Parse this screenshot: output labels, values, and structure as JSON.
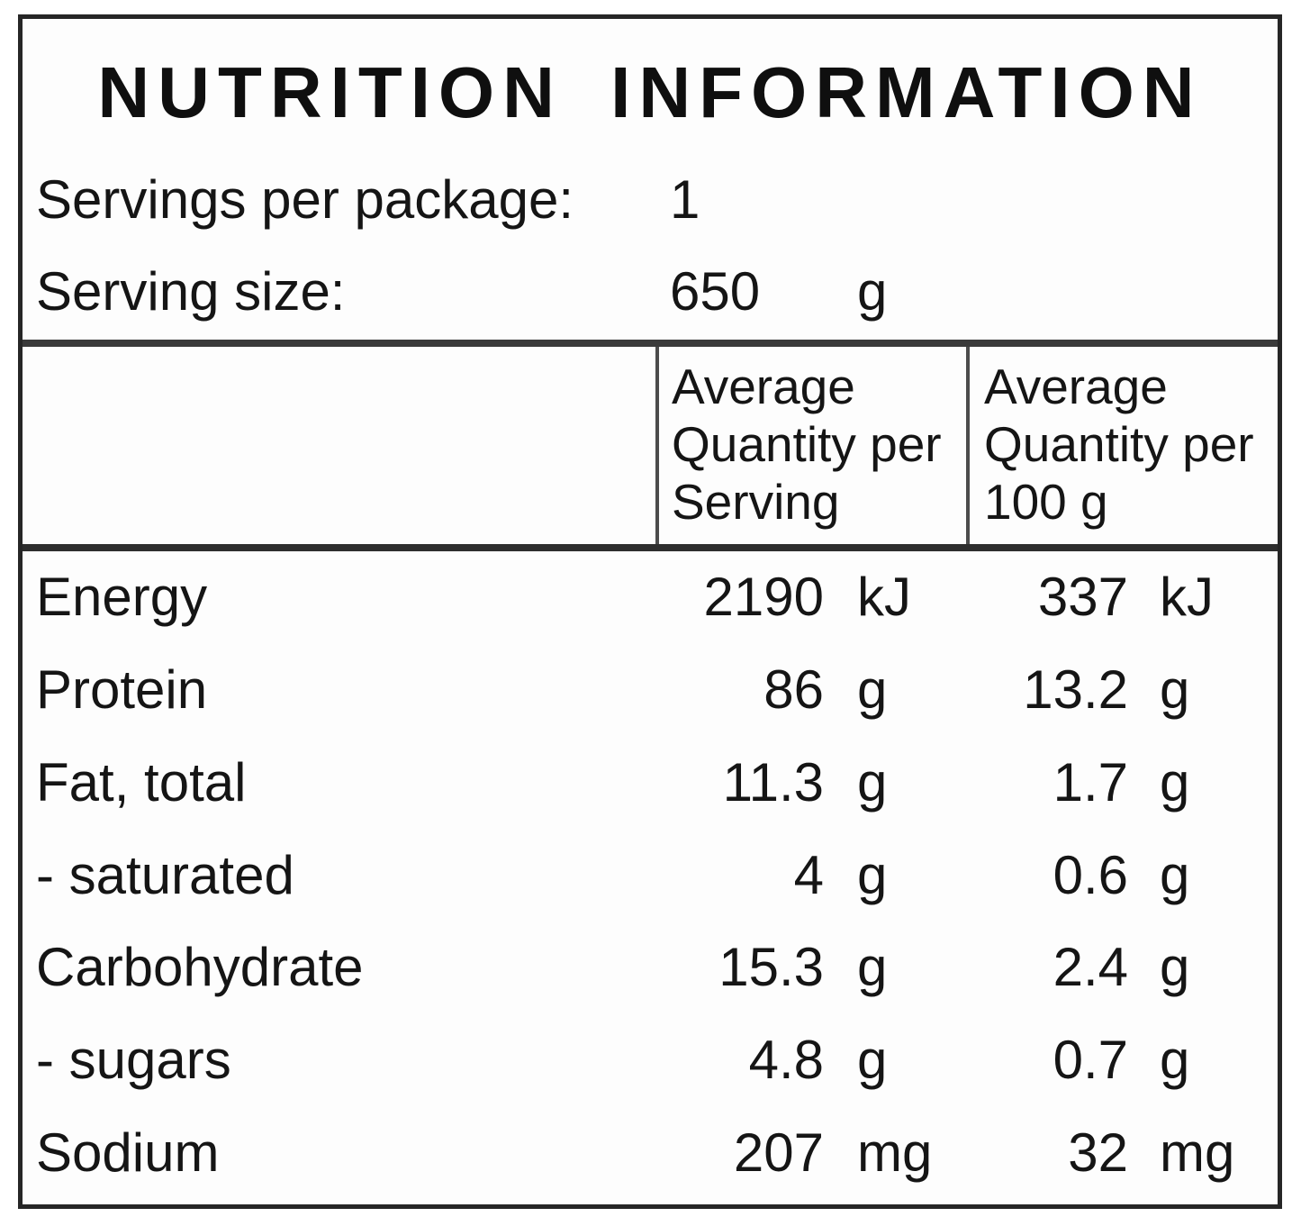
{
  "label": {
    "title": "NUTRITION INFORMATION",
    "servings_per_package": {
      "label": "Servings per package:",
      "value": "1"
    },
    "serving_size": {
      "label": "Serving size:",
      "value": "650",
      "unit": "g"
    },
    "col_serving": "Average\nQuantity per\nServing",
    "col_100g": "Average\nQuantity per\n100 g",
    "rows": [
      {
        "nutrient": "Energy",
        "per_serving": {
          "value": "2190",
          "unit": "kJ"
        },
        "per_100g": {
          "value": "337",
          "unit": "kJ"
        }
      },
      {
        "nutrient": "Protein",
        "per_serving": {
          "value": "86",
          "unit": "g"
        },
        "per_100g": {
          "value": "13.2",
          "unit": "g"
        }
      },
      {
        "nutrient": "Fat, total",
        "per_serving": {
          "value": "11.3",
          "unit": "g"
        },
        "per_100g": {
          "value": "1.7",
          "unit": "g"
        }
      },
      {
        "nutrient": "- saturated",
        "per_serving": {
          "value": "4",
          "unit": "g"
        },
        "per_100g": {
          "value": "0.6",
          "unit": "g"
        }
      },
      {
        "nutrient": "Carbohydrate",
        "per_serving": {
          "value": "15.3",
          "unit": "g"
        },
        "per_100g": {
          "value": "2.4",
          "unit": "g"
        }
      },
      {
        "nutrient": "- sugars",
        "per_serving": {
          "value": "4.8",
          "unit": "g"
        },
        "per_100g": {
          "value": "0.7",
          "unit": "g"
        }
      },
      {
        "nutrient": "Sodium",
        "per_serving": {
          "value": "207",
          "unit": "mg"
        },
        "per_100g": {
          "value": "32",
          "unit": "mg"
        }
      }
    ]
  }
}
